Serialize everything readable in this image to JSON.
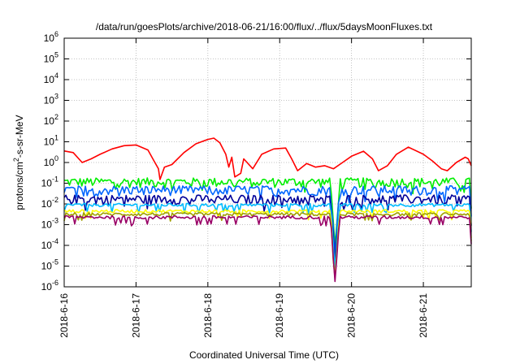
{
  "chart_data": {
    "type": "line",
    "title": "/data/run/goesPlots/archive/2018-06-21/16:00/flux/../flux/5daysMoonFluxes.txt",
    "xlabel": "Coordinated Universal Time (UTC)",
    "ylabel": {
      "base": "protons/cm",
      "sup": "2",
      "rest": "-s-sr-MeV"
    },
    "y_scale": "log",
    "ylim": [
      1e-06,
      1000000.0
    ],
    "y_ticks": [
      {
        "base": "10",
        "exp": "-6",
        "value": 1e-06
      },
      {
        "base": "10",
        "exp": "-5",
        "value": 1e-05
      },
      {
        "base": "10",
        "exp": "-4",
        "value": 0.0001
      },
      {
        "base": "10",
        "exp": "-3",
        "value": 0.001
      },
      {
        "base": "10",
        "exp": "-2",
        "value": 0.01
      },
      {
        "base": "10",
        "exp": "-1",
        "value": 0.1
      },
      {
        "base": "10",
        "exp": "0",
        "value": 1
      },
      {
        "base": "10",
        "exp": "1",
        "value": 10
      },
      {
        "base": "10",
        "exp": "2",
        "value": 100
      },
      {
        "base": "10",
        "exp": "3",
        "value": 1000
      },
      {
        "base": "10",
        "exp": "4",
        "value": 10000
      },
      {
        "base": "10",
        "exp": "5",
        "value": 100000
      },
      {
        "base": "10",
        "exp": "6",
        "value": 1000000
      }
    ],
    "xlim": [
      "2018-06-16T00:00",
      "2018-06-21T16:00"
    ],
    "x_ticks": [
      {
        "label": "2018-6-16",
        "value": "2018-06-16T00:00"
      },
      {
        "label": "2018-6-17",
        "value": "2018-06-17T00:00"
      },
      {
        "label": "2018-6-18",
        "value": "2018-06-18T00:00"
      },
      {
        "label": "2018-6-19",
        "value": "2018-06-19T00:00"
      },
      {
        "label": "2018-6-20",
        "value": "2018-06-20T00:00"
      },
      {
        "label": "2018-6-21",
        "value": "2018-06-21T00:00"
      }
    ],
    "grid": true,
    "legend": "none",
    "series": [
      {
        "color": "#ff0000",
        "points": [
          [
            "2018-06-16T00:00",
            3.6
          ],
          [
            "2018-06-16T03:00",
            3.0
          ],
          [
            "2018-06-16T06:00",
            1.0
          ],
          [
            "2018-06-16T09:00",
            1.5
          ],
          [
            "2018-06-16T12:00",
            2.5
          ],
          [
            "2018-06-16T16:00",
            4.5
          ],
          [
            "2018-06-16T20:00",
            6.5
          ],
          [
            "2018-06-17T00:00",
            7.0
          ],
          [
            "2018-06-17T04:00",
            4.0
          ],
          [
            "2018-06-17T06:00",
            1.2
          ],
          [
            "2018-06-17T07:30",
            0.5
          ],
          [
            "2018-06-17T08:00",
            0.15
          ],
          [
            "2018-06-17T09:30",
            0.6
          ],
          [
            "2018-06-17T12:00",
            0.8
          ],
          [
            "2018-06-17T16:00",
            3.0
          ],
          [
            "2018-06-17T20:00",
            8.0
          ],
          [
            "2018-06-18T00:00",
            13.0
          ],
          [
            "2018-06-18T02:00",
            15.0
          ],
          [
            "2018-06-18T04:00",
            9.0
          ],
          [
            "2018-06-18T06:00",
            2.5
          ],
          [
            "2018-06-18T07:00",
            0.6
          ],
          [
            "2018-06-18T08:00",
            1.8
          ],
          [
            "2018-06-18T09:00",
            0.2
          ],
          [
            "2018-06-18T11:00",
            0.3
          ],
          [
            "2018-06-18T12:00",
            1.5
          ],
          [
            "2018-06-18T15:00",
            0.5
          ],
          [
            "2018-06-18T18:00",
            2.5
          ],
          [
            "2018-06-18T22:00",
            4.5
          ],
          [
            "2018-06-19T02:00",
            5.0
          ],
          [
            "2018-06-19T04:00",
            1.5
          ],
          [
            "2018-06-19T06:00",
            0.4
          ],
          [
            "2018-06-19T09:00",
            0.9
          ],
          [
            "2018-06-19T12:00",
            0.6
          ],
          [
            "2018-06-19T15:00",
            0.7
          ],
          [
            "2018-06-19T18:00",
            0.5
          ],
          [
            "2018-06-19T21:00",
            1.0
          ],
          [
            "2018-06-20T00:00",
            2.0
          ],
          [
            "2018-06-20T04:00",
            3.5
          ],
          [
            "2018-06-20T07:00",
            1.5
          ],
          [
            "2018-06-20T09:00",
            0.4
          ],
          [
            "2018-06-20T12:00",
            0.7
          ],
          [
            "2018-06-20T15:00",
            2.5
          ],
          [
            "2018-06-20T19:00",
            5.5
          ],
          [
            "2018-06-21T00:00",
            2.5
          ],
          [
            "2018-06-21T03:00",
            1.2
          ],
          [
            "2018-06-21T06:00",
            0.5
          ],
          [
            "2018-06-21T08:00",
            0.4
          ],
          [
            "2018-06-21T11:00",
            1.0
          ],
          [
            "2018-06-21T14:00",
            1.8
          ],
          [
            "2018-06-21T15:00",
            1.5
          ],
          [
            "2018-06-21T16:00",
            0.7
          ]
        ]
      },
      {
        "color": "#00ee00",
        "level": 0.12
      },
      {
        "color": "#0066ff",
        "level": 0.05
      },
      {
        "color": "#000099",
        "level": 0.018
      },
      {
        "color": "#00bbff",
        "level": 0.009
      },
      {
        "color": "#ffff00",
        "level": 0.0045
      },
      {
        "color": "#a0a000",
        "level": 0.0032
      },
      {
        "color": "#990066",
        "level": 0.0023
      }
    ]
  }
}
